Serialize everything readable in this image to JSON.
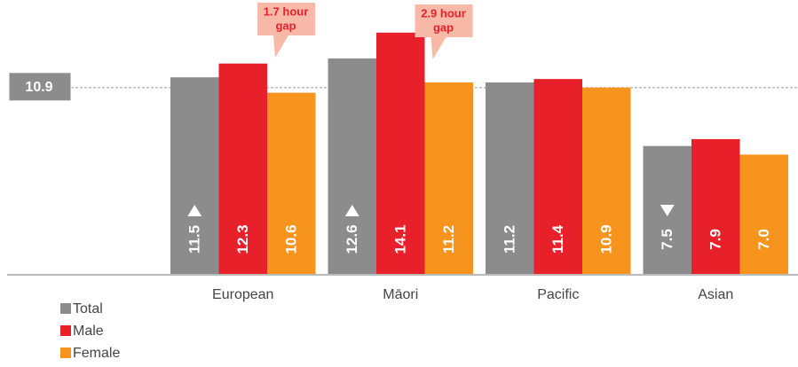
{
  "chart_data": {
    "type": "bar",
    "categories": [
      "European",
      "Māori",
      "Pacific",
      "Asian"
    ],
    "series": [
      {
        "name": "Total",
        "color": "#8c8c8c",
        "values": [
          11.5,
          12.6,
          11.2,
          7.5
        ],
        "value_labels": [
          "11.5",
          "12.6",
          "11.2",
          "7.5"
        ],
        "markers": [
          "up",
          "up",
          null,
          "down"
        ]
      },
      {
        "name": "Male",
        "color": "#e8202a",
        "values": [
          12.3,
          14.1,
          11.4,
          7.9
        ],
        "value_labels": [
          "12.3",
          "14.1",
          "11.4",
          "7.9"
        ]
      },
      {
        "name": "Female",
        "color": "#f7941d",
        "values": [
          10.6,
          11.2,
          10.9,
          7.0
        ],
        "value_labels": [
          "10.6",
          "11.2",
          "10.9",
          "7.0"
        ]
      }
    ],
    "ylim": [
      0,
      16
    ],
    "reference_value": 10.9,
    "annotations": [
      {
        "text": [
          "1.7 hour",
          "gap"
        ],
        "category": 0
      },
      {
        "text": [
          "2.9 hour",
          "gap"
        ],
        "category": 1
      }
    ],
    "legend": "bottom-left"
  }
}
